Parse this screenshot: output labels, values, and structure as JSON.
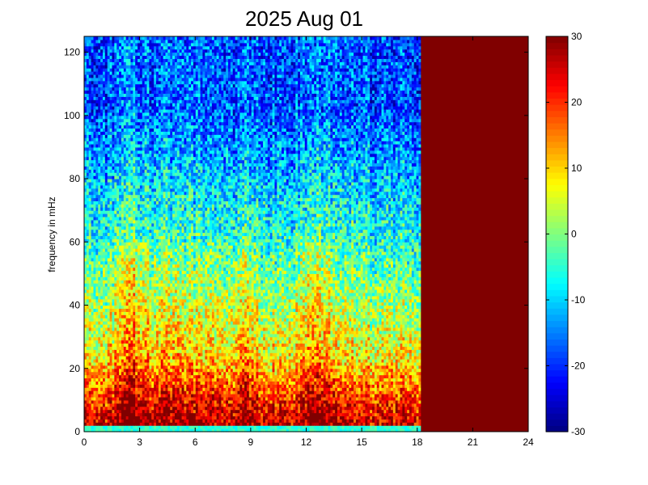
{
  "chart_data": {
    "type": "heatmap",
    "title": "2025 Aug 01",
    "xlabel": "",
    "ylabel": "frequency in mHz",
    "xlim": [
      0,
      24
    ],
    "ylim": [
      0,
      125
    ],
    "x_ticks": [
      "0",
      "3",
      "6",
      "9",
      "12",
      "15",
      "18",
      "21",
      "24"
    ],
    "y_ticks": [
      "0",
      "20",
      "40",
      "60",
      "80",
      "100",
      "120"
    ],
    "colorbar": {
      "range": [
        -30,
        30
      ],
      "ticks": [
        "30",
        "20",
        "10",
        "0",
        "-10",
        "-20",
        "-30"
      ],
      "colormap": "jet"
    },
    "data_end_hour": 18.2,
    "saturated_region": {
      "from_hour": 18.2,
      "to_hour": 24,
      "value": 30
    },
    "description_levels": [
      {
        "freq_band": [
          0,
          8
        ],
        "approx_value": 25
      },
      {
        "freq_band": [
          8,
          40
        ],
        "approx_value": 8
      },
      {
        "freq_band": [
          40,
          80
        ],
        "approx_value": -5
      },
      {
        "freq_band": [
          80,
          125
        ],
        "approx_value": -18
      }
    ]
  }
}
